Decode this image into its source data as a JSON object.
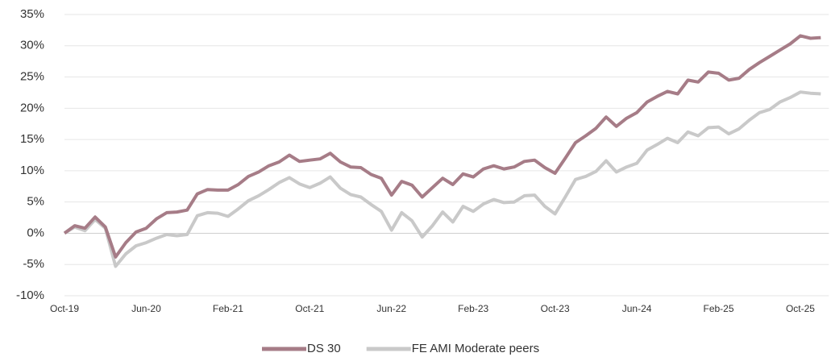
{
  "chart_data": {
    "type": "line",
    "categories": [
      "Oct-19",
      null,
      null,
      null,
      null,
      null,
      null,
      null,
      "Jun-20",
      null,
      null,
      null,
      null,
      null,
      null,
      null,
      "Feb-21",
      null,
      null,
      null,
      null,
      null,
      null,
      null,
      "Oct-21",
      null,
      null,
      null,
      null,
      null,
      null,
      null,
      "Jun-22",
      null,
      null,
      null,
      null,
      null,
      null,
      null,
      "Feb-23",
      null,
      null,
      null,
      null,
      null,
      null,
      null,
      "Oct-23",
      null,
      null,
      null,
      null,
      null,
      null,
      null,
      "Jun-24",
      null,
      null,
      null,
      null,
      null,
      null,
      null,
      "Feb-25",
      null,
      null,
      null,
      null,
      null,
      null,
      null,
      "Oct-25",
      null,
      null
    ],
    "series": [
      {
        "name": "DS 30",
        "color": "#a67c87",
        "values": [
          0,
          1.2,
          0.8,
          2.6,
          1.0,
          -3.8,
          -1.5,
          0.2,
          0.8,
          2.3,
          3.3,
          3.4,
          3.7,
          6.3,
          7.0,
          6.9,
          6.9,
          7.8,
          9.1,
          9.8,
          10.8,
          11.4,
          12.5,
          11.5,
          11.7,
          11.9,
          12.8,
          11.4,
          10.6,
          10.5,
          9.4,
          8.8,
          6.1,
          8.3,
          7.7,
          5.8,
          7.3,
          8.8,
          7.8,
          9.5,
          9.0,
          10.3,
          10.8,
          10.3,
          10.6,
          11.5,
          11.7,
          10.5,
          9.6,
          12.0,
          14.5,
          15.6,
          16.8,
          18.6,
          17.1,
          18.4,
          19.3,
          21.0,
          21.9,
          22.7,
          22.3,
          24.5,
          24.2,
          25.8,
          25.6,
          24.5,
          24.8,
          26.2,
          27.3,
          28.3,
          29.3,
          30.3,
          31.6,
          31.2,
          31.3
        ]
      },
      {
        "name": "FE AMI Moderate peers",
        "color": "#c9c9c9",
        "values": [
          0,
          1.0,
          0.4,
          2.2,
          0.8,
          -5.3,
          -3.3,
          -2.0,
          -1.5,
          -0.8,
          -0.2,
          -0.4,
          -0.2,
          2.8,
          3.3,
          3.2,
          2.7,
          3.9,
          5.2,
          6.0,
          7.0,
          8.1,
          8.9,
          7.9,
          7.3,
          8.0,
          9.0,
          7.2,
          6.2,
          5.8,
          4.6,
          3.5,
          0.5,
          3.3,
          2.0,
          -0.6,
          1.2,
          3.4,
          1.8,
          4.3,
          3.5,
          4.7,
          5.4,
          4.9,
          5.0,
          6.0,
          6.1,
          4.3,
          3.1,
          5.8,
          8.6,
          9.1,
          9.9,
          11.6,
          9.8,
          10.6,
          11.2,
          13.3,
          14.2,
          15.2,
          14.5,
          16.2,
          15.6,
          16.9,
          17.0,
          15.9,
          16.7,
          18.1,
          19.3,
          19.8,
          21.0,
          21.7,
          22.6,
          22.4,
          22.3
        ]
      }
    ],
    "ylim": [
      -10,
      35
    ],
    "yticks": [
      {
        "value": -10,
        "label": "-10%"
      },
      {
        "value": -5,
        "label": "-5%"
      },
      {
        "value": 0,
        "label": "0%"
      },
      {
        "value": 5,
        "label": "5%"
      },
      {
        "value": 10,
        "label": "10%"
      },
      {
        "value": 15,
        "label": "15%"
      },
      {
        "value": 20,
        "label": "20%"
      },
      {
        "value": 25,
        "label": "25%"
      },
      {
        "value": 30,
        "label": "30%"
      },
      {
        "value": 35,
        "label": "35%"
      }
    ],
    "grid": true,
    "legend": "bottom"
  }
}
